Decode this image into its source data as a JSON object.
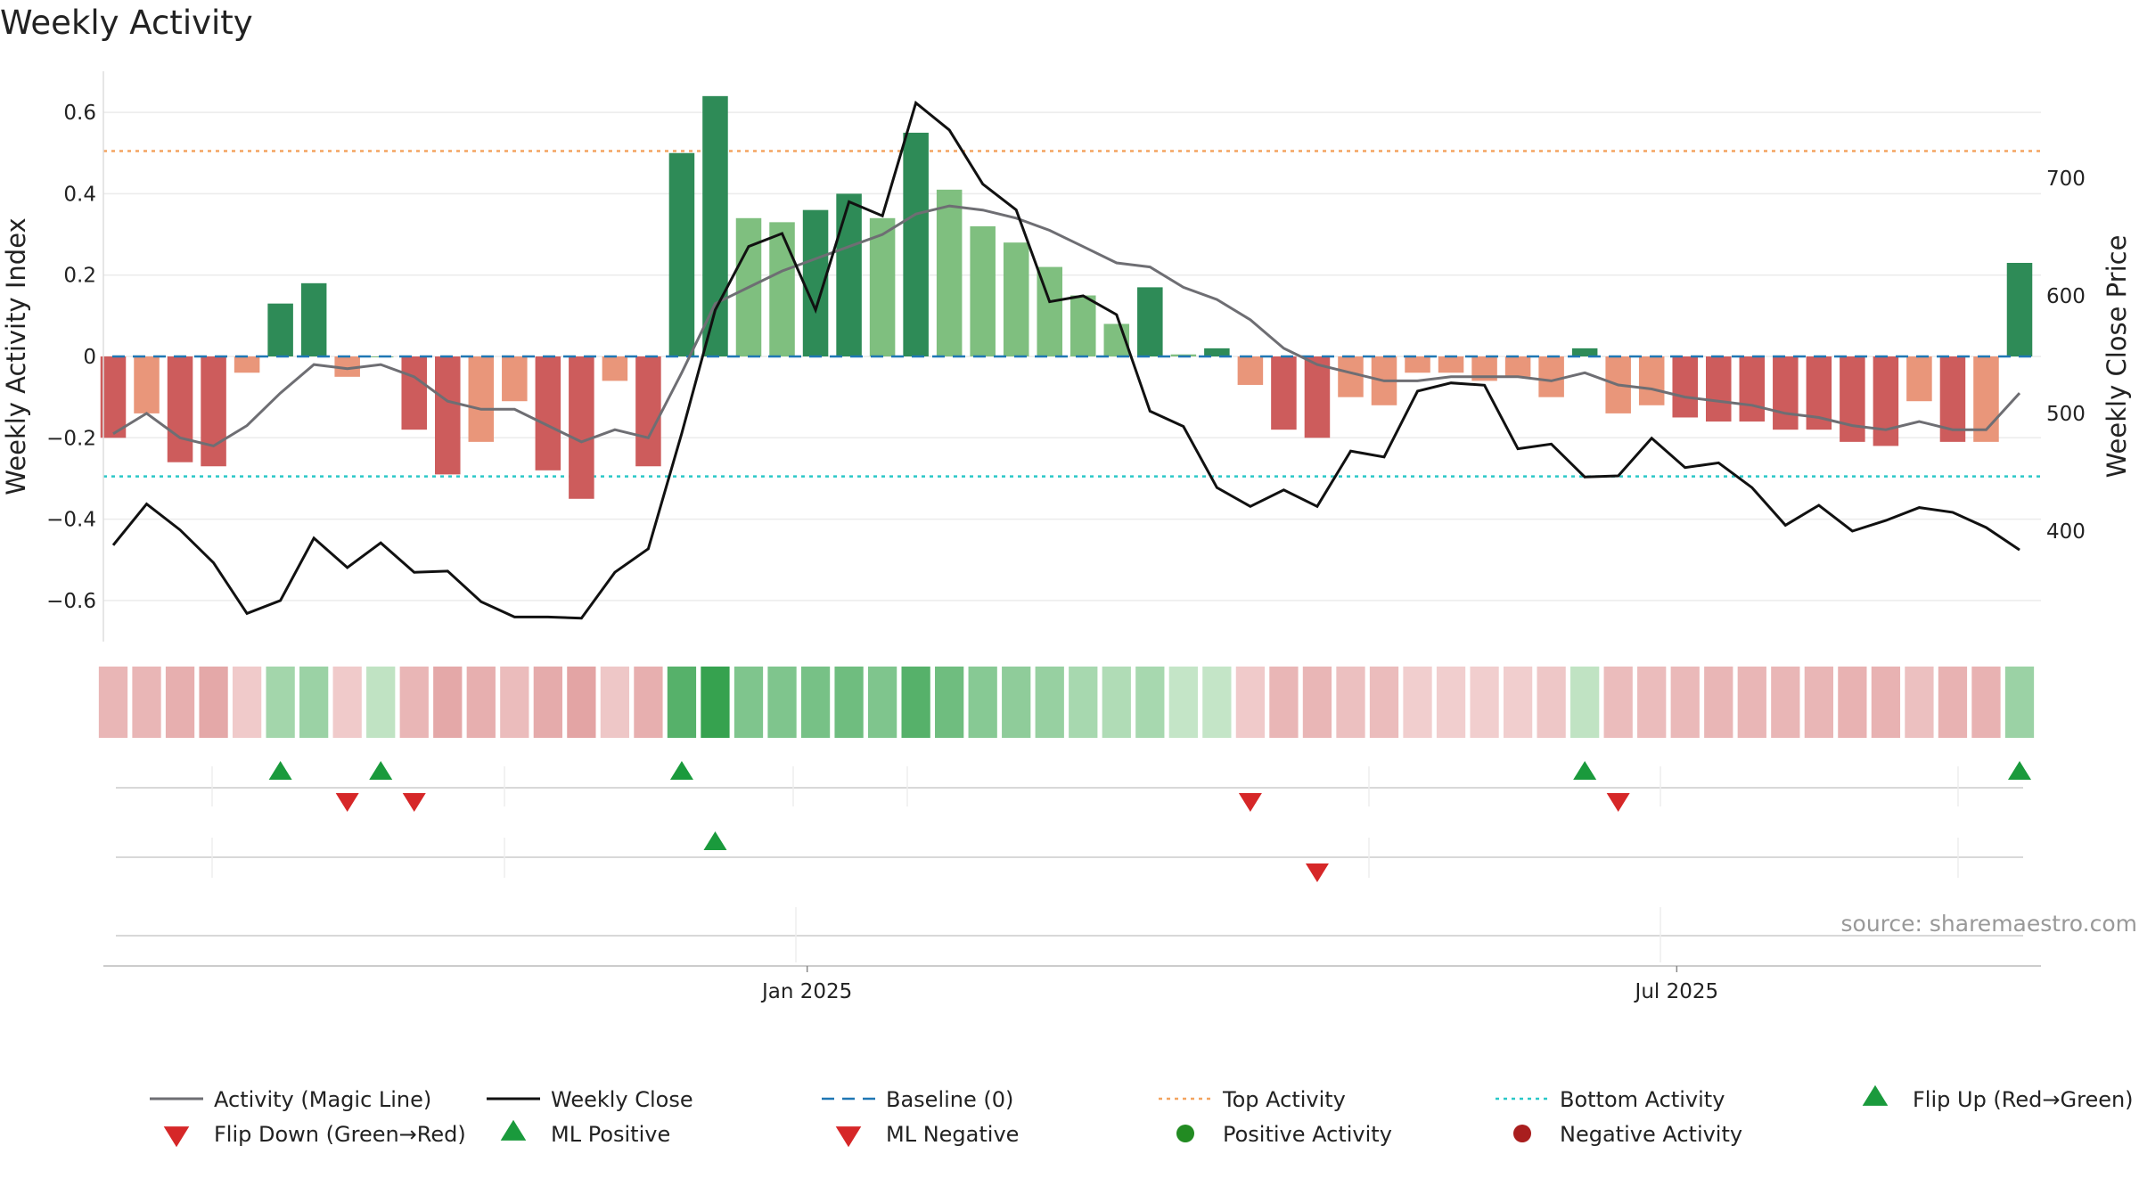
{
  "chart_data": {
    "type": "bar",
    "title": "Weekly Activity",
    "ylabel": "Weekly Activity Index",
    "y2label": "Weekly Close Price",
    "ylim": [
      -0.7,
      0.7
    ],
    "y2lim": [
      330,
      780
    ],
    "yticks": [
      -0.6,
      -0.4,
      -0.2,
      0,
      0.2,
      0.4,
      0.6
    ],
    "ytick_labels": [
      "−0.6",
      "−0.4",
      "−0.2",
      "0",
      "0.2",
      "0.4",
      "0.6"
    ],
    "y2ticks": [
      400,
      500,
      600,
      700
    ],
    "y2tick_labels": [
      "400",
      "500",
      "600",
      "700"
    ],
    "xlabels": [
      {
        "label": "Jan 2025",
        "x": 20.75
      },
      {
        "label": "Jul 2025",
        "x": 46.75
      }
    ],
    "x": [
      0,
      1,
      2,
      3,
      4,
      5,
      6,
      7,
      8,
      9,
      10,
      11,
      12,
      13,
      14,
      15,
      16,
      17,
      18,
      19,
      20,
      21,
      22,
      23,
      24,
      25,
      26,
      27,
      28,
      29,
      30,
      31,
      32,
      33,
      34,
      35,
      36,
      37,
      38,
      39,
      40,
      41,
      42,
      43,
      44,
      45,
      46,
      47,
      48,
      49,
      50,
      51,
      52,
      53,
      54,
      55,
      56,
      57
    ],
    "activity": [
      -0.2,
      -0.14,
      -0.26,
      -0.27,
      -0.04,
      0.13,
      0.18,
      -0.05,
      0.0,
      -0.18,
      -0.29,
      -0.21,
      -0.11,
      -0.28,
      -0.35,
      -0.06,
      -0.27,
      0.5,
      0.64,
      0.34,
      0.33,
      0.36,
      0.4,
      0.34,
      0.55,
      0.41,
      0.32,
      0.28,
      0.22,
      0.15,
      0.08,
      0.17,
      0.005,
      0.02,
      -0.07,
      -0.18,
      -0.2,
      -0.1,
      -0.12,
      -0.04,
      -0.04,
      -0.06,
      -0.05,
      -0.1,
      0.02,
      -0.14,
      -0.12,
      -0.15,
      -0.16,
      -0.16,
      -0.18,
      -0.18,
      -0.21,
      -0.22,
      -0.11,
      -0.21,
      -0.21,
      0.23
    ],
    "magic_line": [
      -0.19,
      -0.14,
      -0.2,
      -0.22,
      -0.17,
      -0.09,
      -0.02,
      -0.03,
      -0.02,
      -0.05,
      -0.11,
      -0.13,
      -0.13,
      -0.17,
      -0.21,
      -0.18,
      -0.2,
      -0.04,
      0.13,
      0.17,
      0.21,
      0.24,
      0.27,
      0.3,
      0.35,
      0.37,
      0.36,
      0.34,
      0.31,
      0.27,
      0.23,
      0.22,
      0.17,
      0.14,
      0.09,
      0.02,
      -0.02,
      -0.04,
      -0.06,
      -0.06,
      -0.05,
      -0.05,
      -0.05,
      -0.06,
      -0.04,
      -0.07,
      -0.08,
      -0.1,
      -0.11,
      -0.12,
      -0.14,
      -0.15,
      -0.17,
      -0.18,
      -0.16,
      -0.18,
      -0.18,
      -0.09
    ],
    "weekly_close": [
      388,
      423,
      401,
      373,
      330,
      341,
      394,
      369,
      390,
      365,
      366,
      340,
      327,
      327,
      326,
      365,
      385,
      483,
      588,
      642,
      653,
      588,
      680,
      668,
      764,
      741,
      695,
      673,
      595,
      600,
      584,
      502,
      489,
      437,
      421,
      435,
      421,
      468,
      463,
      519,
      526,
      524,
      470,
      474,
      446,
      447,
      479,
      454,
      458,
      437,
      405,
      422,
      400,
      409,
      420,
      416,
      403,
      384
    ],
    "top_activity": 0.505,
    "bottom_activity": -0.295,
    "heat_strip": [
      -0.1,
      -0.1,
      -0.12,
      -0.14,
      -0.04,
      0.13,
      0.15,
      -0.04,
      0.06,
      -0.1,
      -0.14,
      -0.12,
      -0.08,
      -0.13,
      -0.15,
      -0.05,
      -0.12,
      0.32,
      0.4,
      0.22,
      0.22,
      0.24,
      0.26,
      0.22,
      0.32,
      0.26,
      0.2,
      0.18,
      0.16,
      0.12,
      0.1,
      0.12,
      0.05,
      0.05,
      -0.04,
      -0.1,
      -0.1,
      -0.07,
      -0.08,
      -0.03,
      -0.03,
      -0.03,
      -0.03,
      -0.05,
      0.06,
      -0.08,
      -0.08,
      -0.09,
      -0.1,
      -0.1,
      -0.1,
      -0.1,
      -0.11,
      -0.11,
      -0.07,
      -0.11,
      -0.11,
      0.15
    ],
    "flip_up": [
      5,
      8,
      17,
      44,
      57
    ],
    "flip_down": [
      7,
      9,
      34,
      45
    ],
    "ml_positive": [
      18
    ],
    "ml_negative": [
      36
    ],
    "colors": {
      "strong_green": "#2e8b57",
      "light_green": "#7fbf7f",
      "strong_red": "#cd5c5c",
      "light_red": "#e9967a",
      "magic_line": "#6e6e73",
      "weekly_close": "#111111",
      "baseline": "#1f77b4",
      "top_activity": "#f4a460",
      "bottom_activity": "#2bc8c8",
      "flip_up": "#1a9a3c",
      "flip_down": "#d62728",
      "positive_activity": "#228b22",
      "negative_activity": "#a91e1e"
    },
    "legend": [
      {
        "label": "Activity (Magic Line)",
        "kind": "line",
        "color": "#6e6e73"
      },
      {
        "label": "Weekly Close",
        "kind": "line",
        "color": "#111111"
      },
      {
        "label": "Baseline (0)",
        "kind": "dash",
        "color": "#1f77b4"
      },
      {
        "label": "Top Activity",
        "kind": "dot",
        "color": "#f4a460"
      },
      {
        "label": "Bottom Activity",
        "kind": "dot",
        "color": "#2bc8c8"
      },
      {
        "label": "Flip Up (Red→Green)",
        "kind": "tri-up",
        "color": "#1a9a3c"
      },
      {
        "label": "Flip Down (Green→Red)",
        "kind": "tri-down",
        "color": "#d62728"
      },
      {
        "label": "ML Positive",
        "kind": "tri-up",
        "color": "#1a9a3c"
      },
      {
        "label": "ML Negative",
        "kind": "tri-down",
        "color": "#d62728"
      },
      {
        "label": "Positive Activity",
        "kind": "circle",
        "color": "#228b22"
      },
      {
        "label": "Negative Activity",
        "kind": "circle",
        "color": "#a91e1e"
      }
    ],
    "source": "source: sharemaestro.com",
    "grid": true,
    "legend_position": "bottom"
  }
}
